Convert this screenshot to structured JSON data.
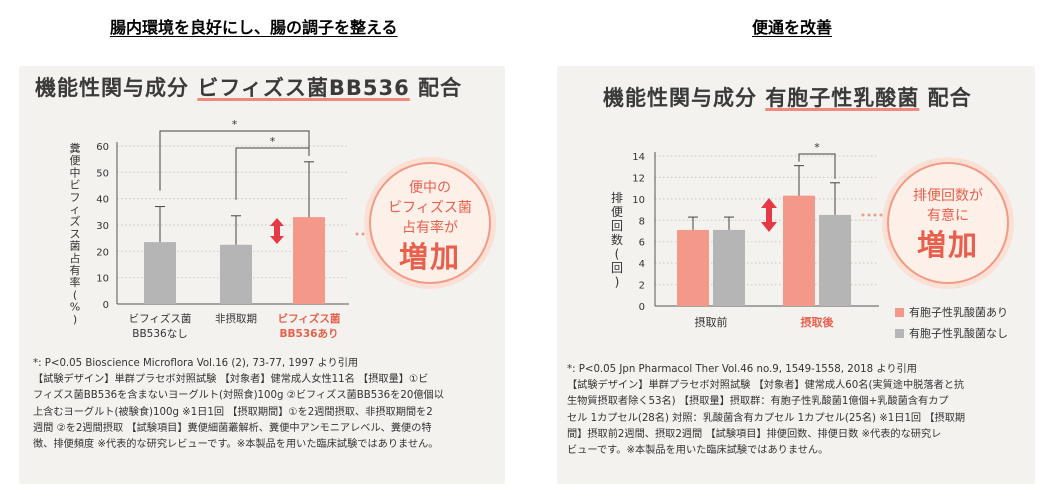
{
  "headings": {
    "left": "腸内環境を良好にし、腸の調子を整える",
    "right": "便通を改善"
  },
  "left_panel": {
    "title_prefix": "機能性関与成分 ",
    "title_emphasis": "ビフィズス菌BB536",
    "title_suffix": " 配合",
    "bubble": {
      "lines": [
        "便中の",
        "ビフィズス菌",
        "占有率が"
      ],
      "big": "増加"
    },
    "footnotes": [
      "*: P<0.05  Bioscience Microflora Vol.16 (2), 73-77, 1997 より引用",
      "【試験デザイン】単群プラセボ対照試験 【対象者】健常成人女性11名 【摂取量】①ビ",
      "フィズス菌BB536を含まないヨーグルト(対照食)100g ②ビフィズス菌BB536を20億個以",
      "上含むヨーグルト(被験食)100g ※1日1回 【摂取期間】①を2週間摂取、非摂取期間を2",
      "週間 ②を2週間摂取 【試験項目】糞便細菌叢解析、糞便中アンモニアレベル、糞便の特",
      "徴、排便頻度 ※代表的な研究レビューです。※本製品を用いた臨床試験ではありません。"
    ]
  },
  "right_panel": {
    "title_prefix": "機能性関与成分 ",
    "title_emphasis": "有胞子性乳酸菌",
    "title_suffix": " 配合",
    "bubble": {
      "lines": [
        "排便回数が",
        "有意に"
      ],
      "big": "増加"
    },
    "legend": [
      "有胞子性乳酸菌あり",
      "有胞子性乳酸菌なし"
    ],
    "footnotes": [
      "*: P<0.05  Jpn Pharmacol Ther Vol.46 no.9, 1549-1558, 2018 より引用",
      "【試験デザイン】単群プラセボ対照試験 【対象者】健常成人60名(実質途中脱落者と抗",
      "生物質摂取者除く53名) 【摂取量】摂取群：有胞子性乳酸菌1億個+乳酸菌含有カプ",
      "セル 1カプセル(28名) 対照：乳酸菌含有カプセル 1カプセル(25名) ※1日1回 【摂取期",
      "間】摂取前2週間、摂取2週間 【試験項目】排便回数、排便日数 ※代表的な研究レ",
      "ビューです。※本製品を用いた臨床試験ではありません。"
    ]
  },
  "colors": {
    "highlight": "#f4998a",
    "gray": "#b5b5b5",
    "accent_text": "#e8604d",
    "arrow": "#e63946"
  },
  "chart_data": [
    {
      "type": "bar",
      "ylabel": "糞便中ビフィズス菌占有率(%)",
      "ylim": [
        0,
        60
      ],
      "yticks": [
        0,
        10,
        20,
        30,
        40,
        50,
        60
      ],
      "categories": [
        [
          "ビフィズス菌",
          "BB536なし"
        ],
        [
          "非摂取期"
        ],
        [
          "ビフィズス菌",
          "BB536あり"
        ]
      ],
      "values": [
        23.5,
        22.5,
        33
      ],
      "errors": [
        13.5,
        11,
        21
      ],
      "significance": "*"
    },
    {
      "type": "bar",
      "ylabel": "排便回数(回)",
      "ylim": [
        0,
        14
      ],
      "yticks": [
        0,
        2,
        4,
        6,
        8,
        10,
        12,
        14
      ],
      "categories": [
        "摂取前",
        "摂取後"
      ],
      "series": [
        {
          "name": "有胞子性乳酸菌あり",
          "values": [
            7.1,
            10.3
          ],
          "errors": [
            1.2,
            2.8
          ]
        },
        {
          "name": "有胞子性乳酸菌なし",
          "values": [
            7.1,
            8.5
          ],
          "errors": [
            1.2,
            3.0
          ]
        }
      ],
      "significance": "*"
    }
  ]
}
